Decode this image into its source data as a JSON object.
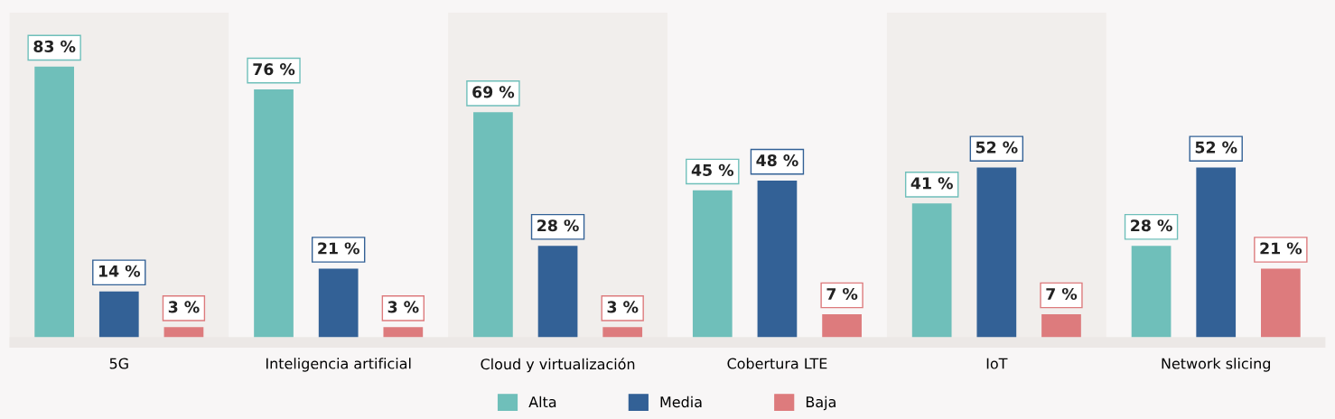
{
  "chart_data": {
    "type": "bar",
    "categories": [
      "5G",
      "Inteligencia artificial",
      "Cloud y virtualización",
      "Cobertura LTE",
      "IoT",
      "Network slicing"
    ],
    "series": [
      {
        "name": "Alta",
        "color": "#6fbfba",
        "values": [
          83,
          76,
          69,
          45,
          41,
          28
        ],
        "value_labels": [
          "83 %",
          "76 %",
          "69 %",
          "45 %",
          "41 %",
          "28 %"
        ]
      },
      {
        "name": "Media",
        "color": "#336196",
        "values": [
          14,
          21,
          28,
          48,
          52,
          52
        ],
        "value_labels": [
          "14 %",
          "21 %",
          "28 %",
          "48 %",
          "52 %",
          "52 %"
        ]
      },
      {
        "name": "Baja",
        "color": "#dd7b7d",
        "values": [
          3,
          3,
          3,
          7,
          7,
          21
        ],
        "value_labels": [
          "3 %",
          "3 %",
          "3 %",
          "7 %",
          "7 %",
          "21 %"
        ]
      }
    ],
    "relative": false,
    "bands": [
      {
        "axis": "x",
        "from": "5G",
        "to": "5G",
        "color": "#f1eeec"
      },
      {
        "axis": "x",
        "from": "Cloud y virtualización",
        "to": "Cloud y virtualización",
        "color": "#f1eeec"
      },
      {
        "axis": "x",
        "from": "IoT",
        "to": "IoT",
        "color": "#f1eeec"
      }
    ],
    "legend": "bottom",
    "grid": false
  }
}
